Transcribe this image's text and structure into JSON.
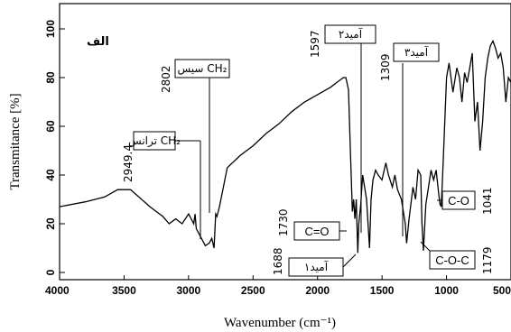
{
  "chart_data": {
    "type": "line",
    "panel_label": "الف",
    "xlabel": "Wavenumber (cm⁻¹)",
    "ylabel": "Transmitance [%]",
    "xlim": [
      4000,
      500
    ],
    "ylim": [
      0,
      100
    ],
    "x_ticks": [
      "4000",
      "3500",
      "3000",
      "2500",
      "2000",
      "1500",
      "1000",
      "500"
    ],
    "y_ticks": [
      "0",
      "20",
      "40",
      "60",
      "80",
      "100"
    ],
    "grid": false,
    "series": [
      {
        "x": [
          4000,
          3800,
          3650,
          3550,
          3450,
          3300,
          3200,
          3150,
          3100,
          3050,
          3000,
          2960,
          2949.4,
          2940,
          2900,
          2870,
          2840,
          2820,
          2802,
          2790,
          2780,
          2760,
          2700,
          2600,
          2500,
          2400,
          2300,
          2200,
          2100,
          2000,
          1900,
          1850,
          1800,
          1780,
          1760,
          1745,
          1730,
          1720,
          1710,
          1700,
          1688,
          1680,
          1665,
          1650,
          1620,
          1597,
          1585,
          1570,
          1550,
          1530,
          1500,
          1470,
          1450,
          1420,
          1400,
          1380,
          1350,
          1320,
          1309,
          1290,
          1260,
          1240,
          1220,
          1200,
          1190,
          1179,
          1160,
          1140,
          1120,
          1100,
          1080,
          1060,
          1050,
          1041,
          1030,
          1000,
          980,
          950,
          920,
          900,
          880,
          860,
          840,
          820,
          800,
          780,
          760,
          740,
          720,
          700,
          680,
          660,
          640,
          620,
          600,
          580,
          560,
          540,
          520,
          500
        ],
        "y": [
          27,
          29,
          31,
          34,
          34,
          27,
          23,
          20,
          22,
          20,
          24,
          20,
          24,
          18,
          14,
          11,
          12,
          14,
          10,
          24,
          23,
          27,
          43,
          48,
          52,
          57,
          61,
          66,
          70,
          73,
          76,
          78,
          80,
          80,
          75,
          50,
          25,
          30,
          22,
          30,
          8,
          20,
          28,
          40,
          30,
          10,
          30,
          38,
          42,
          40,
          38,
          45,
          40,
          35,
          40,
          34,
          30,
          20,
          12,
          22,
          35,
          30,
          42,
          40,
          20,
          9,
          28,
          35,
          42,
          38,
          42,
          32,
          28,
          27,
          40,
          80,
          86,
          74,
          84,
          80,
          70,
          82,
          78,
          84,
          90,
          62,
          70,
          50,
          62,
          80,
          88,
          93,
          95,
          92,
          88,
          90,
          84,
          70,
          80,
          78
        ]
      }
    ],
    "annotations": [
      {
        "value": "2949.4",
        "text": "ترانس CH₂"
      },
      {
        "value": "2802",
        "text": "سیس CH₂"
      },
      {
        "value": "1597",
        "text": "آمید٢"
      },
      {
        "value": "1309",
        "text": "آمید٣"
      },
      {
        "value": "1730",
        "text": "C=O"
      },
      {
        "value": "1688",
        "text": "آمید١"
      },
      {
        "value": "1041",
        "text": "C-O"
      },
      {
        "value": "1179",
        "text": "C-O-C"
      }
    ]
  }
}
